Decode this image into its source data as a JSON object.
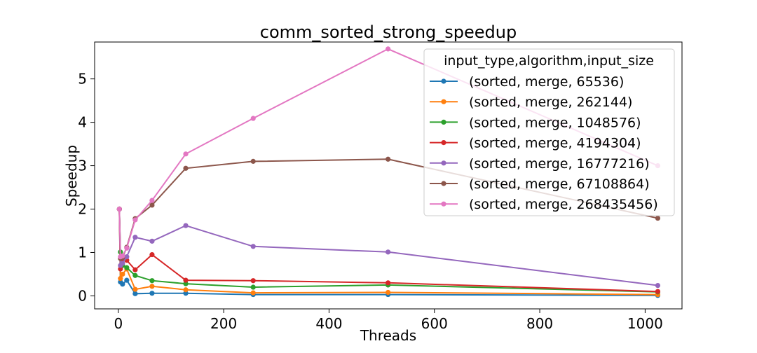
{
  "chart_data": {
    "type": "line",
    "title": "comm_sorted_strong_speedup",
    "xlabel": "Threads",
    "ylabel": "Speedup",
    "xlim": [
      -45,
      1070
    ],
    "ylim": [
      -0.3,
      5.85
    ],
    "xticks": [
      0,
      200,
      400,
      600,
      800,
      1000
    ],
    "yticks": [
      0,
      1,
      2,
      3,
      4,
      5
    ],
    "grid": false,
    "legend_title": "input_type,algorithm,input_size",
    "legend_position": "top-right",
    "x": [
      2,
      4,
      8,
      16,
      32,
      64,
      128,
      256,
      512,
      1024
    ],
    "series": [
      {
        "name": "(sorted, merge, 65536)",
        "color": "#1f77b4",
        "values": [
          2.0,
          0.32,
          0.27,
          0.36,
          0.05,
          0.06,
          0.06,
          0.03,
          0.03,
          0.01
        ]
      },
      {
        "name": "(sorted, merge, 262144)",
        "color": "#ff7f0e",
        "values": [
          2.0,
          0.4,
          0.5,
          0.62,
          0.15,
          0.22,
          0.14,
          0.07,
          0.08,
          0.03
        ]
      },
      {
        "name": "(sorted, merge, 1048576)",
        "color": "#2ca02c",
        "values": [
          2.0,
          1.01,
          0.7,
          0.65,
          0.47,
          0.35,
          0.28,
          0.2,
          0.25,
          0.09
        ]
      },
      {
        "name": "(sorted, merge, 4194304)",
        "color": "#d62728",
        "values": [
          2.0,
          0.62,
          0.85,
          0.82,
          0.6,
          0.95,
          0.36,
          0.35,
          0.3,
          0.1
        ]
      },
      {
        "name": "(sorted, merge, 16777216)",
        "color": "#9467bd",
        "values": [
          2.0,
          0.7,
          0.75,
          0.9,
          1.35,
          1.26,
          1.62,
          1.14,
          1.01,
          0.24
        ]
      },
      {
        "name": "(sorted, merge, 67108864)",
        "color": "#8c564b",
        "values": [
          2.0,
          0.86,
          0.88,
          1.12,
          1.78,
          2.09,
          2.94,
          3.1,
          3.15,
          1.79
        ]
      },
      {
        "name": "(sorted, merge, 268435456)",
        "color": "#e377c2",
        "values": [
          2.0,
          0.9,
          0.92,
          1.1,
          1.75,
          2.2,
          3.27,
          4.09,
          5.69,
          3.0
        ]
      }
    ]
  }
}
